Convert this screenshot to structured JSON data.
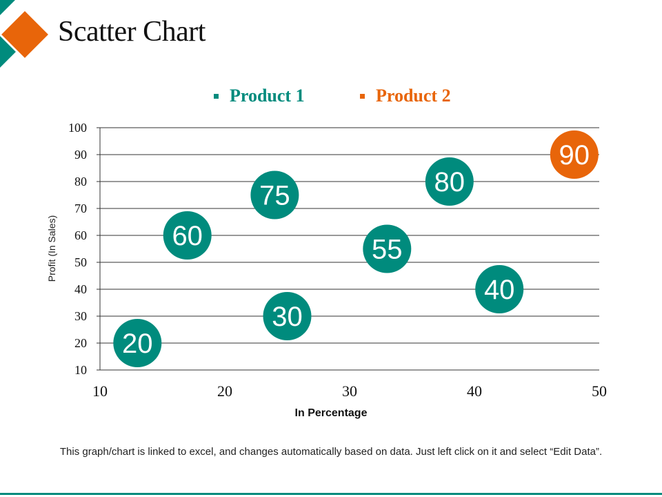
{
  "slide": {
    "title": "Scatter Chart",
    "footnote": "This graph/chart is linked to excel, and changes automatically based on data. Just left click on it and select “Edit Data”."
  },
  "colors": {
    "teal": "#008B7D",
    "orange": "#E8650A",
    "gridline": "#333333",
    "text": "#111111"
  },
  "chart_data": {
    "type": "scatter",
    "title": "",
    "xlabel": "In Percentage",
    "ylabel": "Profit  (In Sales)",
    "xlim": [
      10,
      50
    ],
    "ylim": [
      10,
      100
    ],
    "xticks": [
      10,
      20,
      30,
      40,
      50
    ],
    "yticks": [
      10,
      20,
      30,
      40,
      50,
      60,
      70,
      80,
      90,
      100
    ],
    "grid": "horizontal",
    "legend_position": "top-center",
    "series": [
      {
        "name": "Product 1",
        "color": "#008B7D",
        "points": [
          {
            "x": 13,
            "y": 20,
            "label": "20"
          },
          {
            "x": 17,
            "y": 60,
            "label": "60"
          },
          {
            "x": 24,
            "y": 75,
            "label": "75"
          },
          {
            "x": 25,
            "y": 30,
            "label": "30"
          },
          {
            "x": 33,
            "y": 55,
            "label": "55"
          },
          {
            "x": 38,
            "y": 80,
            "label": "80"
          },
          {
            "x": 42,
            "y": 40,
            "label": "40"
          }
        ]
      },
      {
        "name": "Product 2",
        "color": "#E8650A",
        "points": [
          {
            "x": 48,
            "y": 90,
            "label": "90"
          }
        ]
      }
    ]
  }
}
